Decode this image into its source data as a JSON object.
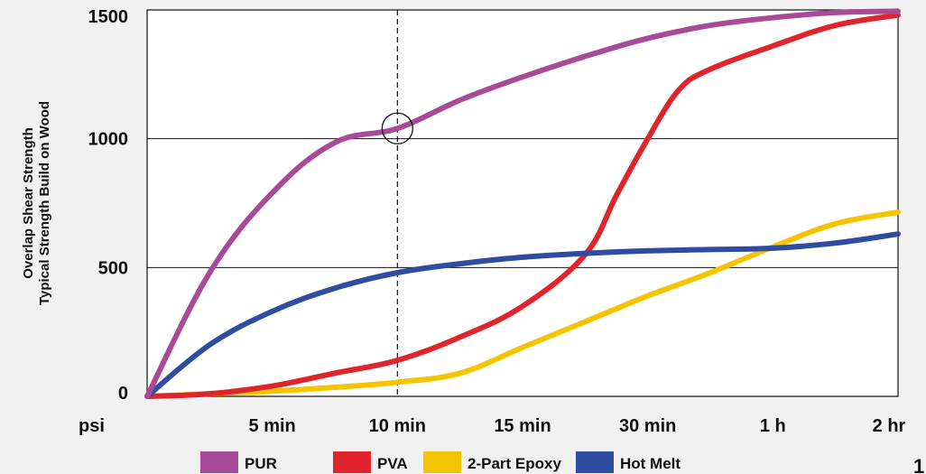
{
  "chart_data": {
    "type": "line",
    "ylabel_lines": [
      "Overlap Shear Strength",
      "Typical Strength Build on Wood"
    ],
    "y_unit": "psi",
    "ylim": [
      0,
      1500
    ],
    "yticks": [
      0,
      500,
      1000,
      1500
    ],
    "categories": [
      "",
      "5 min",
      "10 min",
      "15 min",
      "30 min",
      "1 h",
      "2 hr"
    ],
    "x_tick_labels": [
      "5 min",
      "10 min",
      "15 min",
      "30 min",
      "1 h",
      "2 hr"
    ],
    "grid": "horizontal",
    "legend_position": "bottom",
    "reference_line": {
      "x": "10 min",
      "style": "dashed"
    },
    "highlight": {
      "series": "PUR",
      "x": "10 min",
      "y": 1040
    },
    "series": [
      {
        "name": "PUR",
        "color": "#a84a98",
        "points": [
          [
            0,
            0
          ],
          [
            0.5,
            480
          ],
          [
            1,
            790
          ],
          [
            1.5,
            985
          ],
          [
            2,
            1040
          ],
          [
            2.5,
            1150
          ],
          [
            3,
            1240
          ],
          [
            3.5,
            1320
          ],
          [
            4,
            1390
          ],
          [
            4.5,
            1440
          ],
          [
            5,
            1470
          ],
          [
            5.5,
            1490
          ],
          [
            6,
            1495
          ]
        ]
      },
      {
        "name": "PVA",
        "color": "#e0242b",
        "points": [
          [
            0,
            0
          ],
          [
            0.5,
            10
          ],
          [
            1,
            40
          ],
          [
            1.5,
            90
          ],
          [
            2,
            140
          ],
          [
            2.5,
            230
          ],
          [
            3,
            350
          ],
          [
            3.5,
            550
          ],
          [
            3.75,
            780
          ],
          [
            4,
            1000
          ],
          [
            4.25,
            1190
          ],
          [
            4.5,
            1270
          ],
          [
            5,
            1360
          ],
          [
            5.5,
            1440
          ],
          [
            6,
            1480
          ]
        ]
      },
      {
        "name": "2-Part Epoxy",
        "color": "#f5c400",
        "points": [
          [
            0,
            0
          ],
          [
            0.5,
            10
          ],
          [
            1,
            20
          ],
          [
            1.5,
            35
          ],
          [
            2,
            55
          ],
          [
            2.5,
            90
          ],
          [
            3,
            190
          ],
          [
            3.5,
            290
          ],
          [
            4,
            390
          ],
          [
            4.5,
            480
          ],
          [
            5,
            580
          ],
          [
            5.5,
            670
          ],
          [
            6,
            715
          ]
        ]
      },
      {
        "name": "Hot Melt",
        "color": "#2e4da0",
        "points": [
          [
            0,
            0
          ],
          [
            0.5,
            200
          ],
          [
            1,
            330
          ],
          [
            1.5,
            420
          ],
          [
            2,
            480
          ],
          [
            2.5,
            515
          ],
          [
            3,
            540
          ],
          [
            3.5,
            555
          ],
          [
            4,
            565
          ],
          [
            4.5,
            570
          ],
          [
            5,
            575
          ],
          [
            5.5,
            595
          ],
          [
            6,
            630
          ]
        ]
      }
    ]
  }
}
